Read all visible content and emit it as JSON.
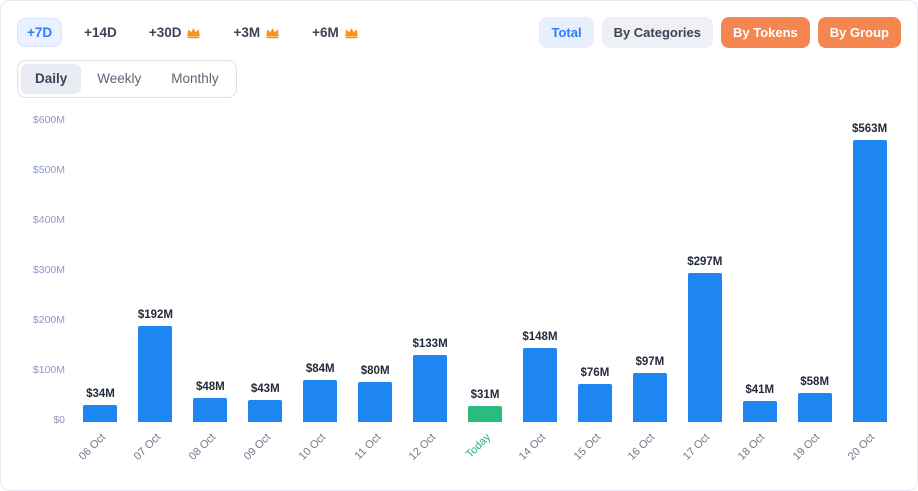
{
  "header": {
    "range_filters": [
      {
        "label": "+7D",
        "active": true,
        "premium": false
      },
      {
        "label": "+14D",
        "active": false,
        "premium": false
      },
      {
        "label": "+30D",
        "active": false,
        "premium": true
      },
      {
        "label": "+3M",
        "active": false,
        "premium": true
      },
      {
        "label": "+6M",
        "active": false,
        "premium": true
      }
    ],
    "view_filters": [
      {
        "label": "Total",
        "style": "blue"
      },
      {
        "label": "By Categories",
        "style": "gray"
      },
      {
        "label": "By Tokens",
        "style": "orange"
      },
      {
        "label": "By Group",
        "style": "orange"
      }
    ],
    "period_tabs": [
      {
        "label": "Daily",
        "active": true
      },
      {
        "label": "Weekly",
        "active": false
      },
      {
        "label": "Monthly",
        "active": false
      }
    ]
  },
  "chart_data": {
    "type": "bar",
    "categories": [
      "06 Oct",
      "07 Oct",
      "08 Oct",
      "09 Oct",
      "10 Oct",
      "11 Oct",
      "12 Oct",
      "Today",
      "14 Oct",
      "15 Oct",
      "16 Oct",
      "17 Oct",
      "18 Oct",
      "19 Oct",
      "20 Oct"
    ],
    "values": [
      34,
      192,
      48,
      43,
      84,
      80,
      133,
      31,
      148,
      76,
      97,
      297,
      41,
      58,
      563
    ],
    "value_labels": [
      "$34M",
      "$192M",
      "$48M",
      "$43M",
      "$84M",
      "$80M",
      "$133M",
      "$31M",
      "$148M",
      "$76M",
      "$97M",
      "$297M",
      "$41M",
      "$58M",
      "$563M"
    ],
    "highlight_index": 7,
    "y_ticks": [
      "$0",
      "$100M",
      "$200M",
      "$300M",
      "$400M",
      "$500M",
      "$600M"
    ],
    "ylim": [
      0,
      600
    ],
    "xlabel": "",
    "ylabel": "",
    "title": "",
    "grid": false,
    "legend": "none",
    "bar_color": "#1d86f2",
    "highlight_color": "#2abb7f"
  },
  "colors": {
    "accent_blue": "#2d7ff5",
    "light_blue_bg": "#e9f1fe",
    "orange": "#f6864f",
    "gray_bg": "#eef0f5",
    "y_axis_text": "#8e97c4",
    "x_axis_text": "#707889",
    "today_green": "#1fb57c",
    "crown_gold": "#f7941d"
  }
}
